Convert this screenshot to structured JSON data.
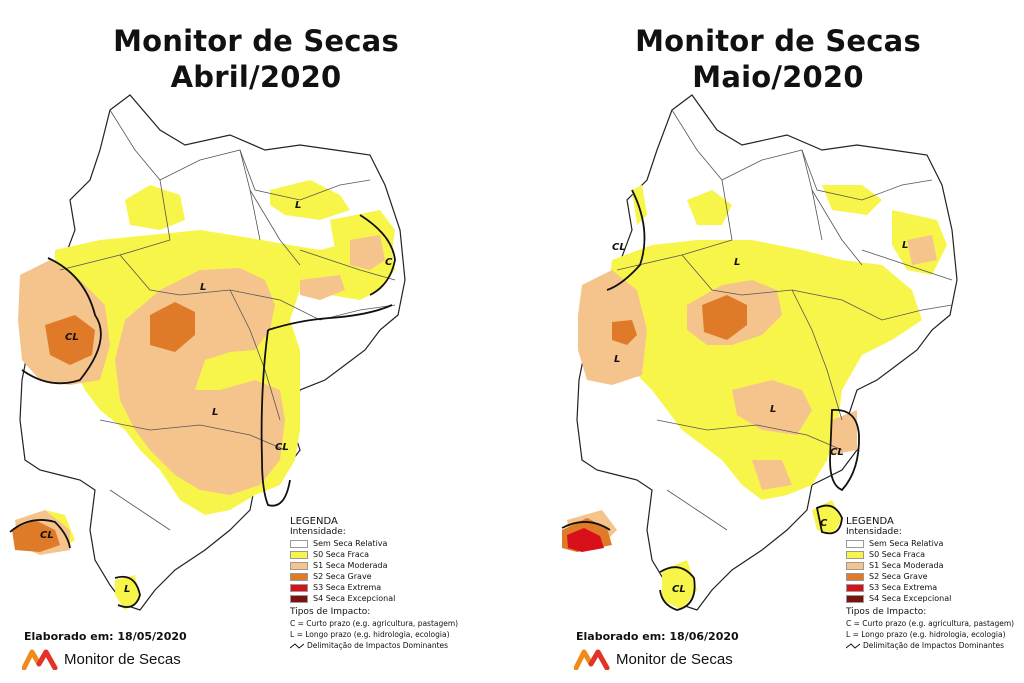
{
  "colors": {
    "sem_seca": "#ffffff",
    "s0": "#f8f54a",
    "s1": "#f5c48c",
    "s2": "#df7a28",
    "s3": "#d8101a",
    "s4": "#7a1212",
    "outline": "#111111",
    "brand_orange": "#f08a1a",
    "brand_red": "#e2332a"
  },
  "maps": [
    {
      "title_line1": "Monitor de Secas",
      "title_line2": "Abril/2020",
      "impact_labels": [
        "L",
        "CL",
        "L",
        "L",
        "CL",
        "C",
        "CL",
        "L"
      ],
      "elaborado": "Elaborado em: 18/05/2020"
    },
    {
      "title_line1": "Monitor de Secas",
      "title_line2": "Maio/2020",
      "impact_labels": [
        "CL",
        "L",
        "L",
        "L",
        "L",
        "CL",
        "C",
        "CL"
      ],
      "elaborado": "Elaborado em: 18/06/2020"
    }
  ],
  "legend": {
    "title": "LEGENDA",
    "subtitle": "Intensidade:",
    "items": [
      {
        "label": "Sem Seca Relativa",
        "color_key": "sem_seca"
      },
      {
        "label": "S0 Seca Fraca",
        "color_key": "s0"
      },
      {
        "label": "S1 Seca Moderada",
        "color_key": "s1"
      },
      {
        "label": "S2 Seca Grave",
        "color_key": "s2"
      },
      {
        "label": "S3 Seca Extrema",
        "color_key": "s3"
      },
      {
        "label": "S4 Seca Excepcional",
        "color_key": "s4"
      }
    ],
    "impact_title": "Tipos de Impacto:",
    "impact_c": "C = Curto prazo (e.g. agricultura, pastagem)",
    "impact_l": "L = Longo prazo (e.g. hidrologia, ecologia)",
    "impact_line": "Delimitação de Impactos Dominantes"
  },
  "brand": {
    "name": "Monitor de Secas",
    "logo_icon": "monitor-de-secas-logo"
  }
}
